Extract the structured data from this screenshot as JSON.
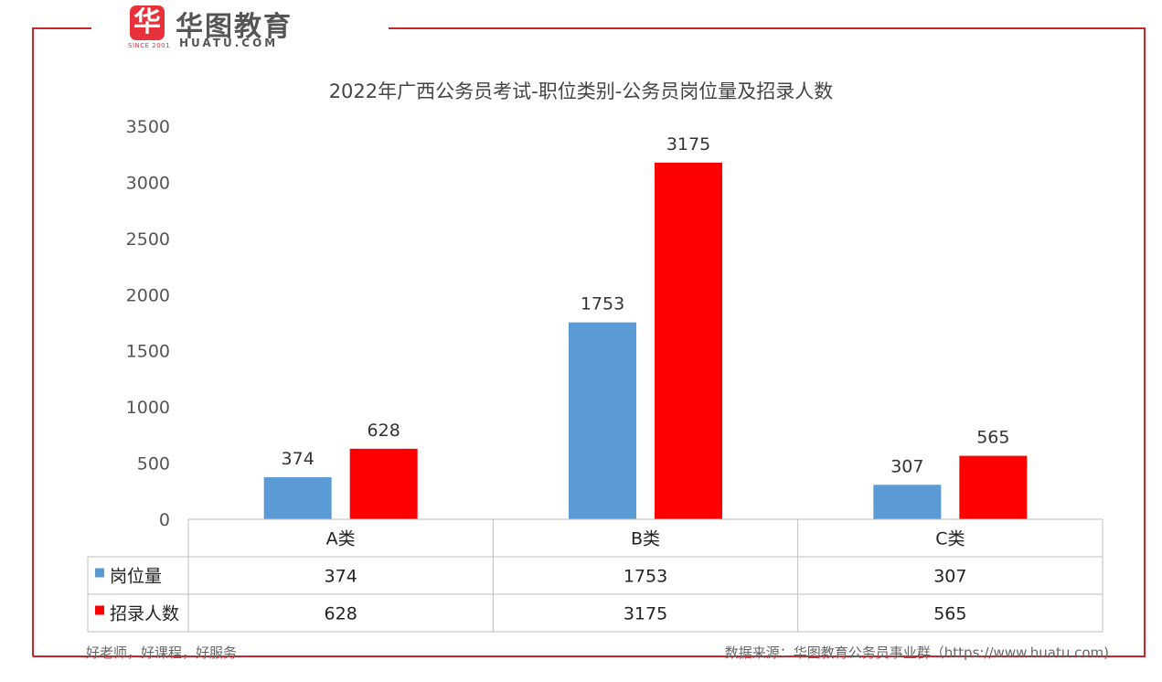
{
  "brand": {
    "logo_glyph": "华",
    "since": "SINCE 2001",
    "name": "华图教育",
    "domain": "HUATU.COM"
  },
  "footer": {
    "slogan": "好老师，好课程，好服务",
    "source": "数据来源：华图教育公务员事业群（https://www.huatu.com)"
  },
  "colors": {
    "frame": "#c9252c",
    "series_blue": "#5b9bd5",
    "series_red": "#ff0000"
  },
  "chart_data": {
    "type": "bar",
    "title": "2022年广西公务员考试-职位类别-公务员岗位量及招录人数",
    "categories": [
      "A类",
      "B类",
      "C类"
    ],
    "series": [
      {
        "name": "岗位量",
        "values": [
          374,
          1753,
          307
        ],
        "color": "#5b9bd5"
      },
      {
        "name": "招录人数",
        "values": [
          628,
          3175,
          565
        ],
        "color": "#ff0000"
      }
    ],
    "ylim": [
      0,
      3500
    ],
    "yticks": [
      0,
      500,
      1000,
      1500,
      2000,
      2500,
      3000,
      3500
    ],
    "data_labels": true,
    "grid": false,
    "legend": "data-table below chart"
  }
}
